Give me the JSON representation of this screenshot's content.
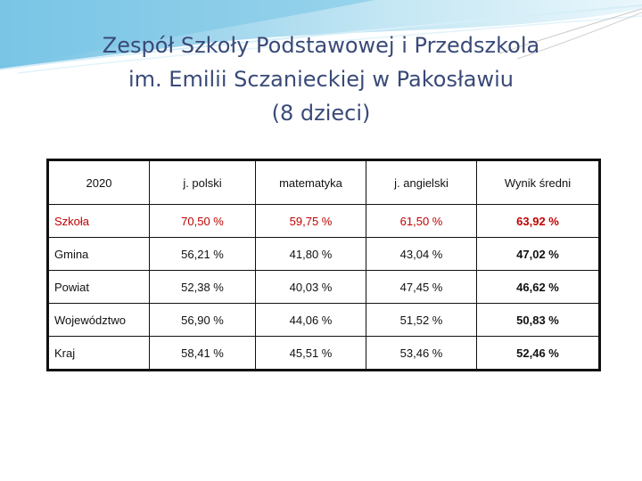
{
  "title": {
    "line1": "Zespół Szkoły Podstawowej i Przedszkola",
    "line2": "im. Emilii Sczanieckiej w Pakosławiu",
    "line3": "(8 dzieci)"
  },
  "table": {
    "headers": [
      "2020",
      "j. polski",
      "matematyka",
      "j. angielski",
      "Wynik średni"
    ],
    "rows": [
      {
        "name": "Szkoła",
        "values": [
          "70,50 %",
          "59,75 %",
          "61,50 %",
          "63,92 %"
        ]
      },
      {
        "name": "Gmina",
        "values": [
          "56,21 %",
          "41,80 %",
          "43,04 %",
          "47,02 %"
        ]
      },
      {
        "name": "Powiat",
        "values": [
          "52,38 %",
          "40,03 %",
          "47,45 %",
          "46,62 %"
        ]
      },
      {
        "name": "Województwo",
        "values": [
          "56,90 %",
          "44,06 %",
          "51,52 %",
          "50,83 %"
        ]
      },
      {
        "name": "Kraj",
        "values": [
          "58,41 %",
          "45,51 %",
          "53,46 %",
          "52,46 %"
        ]
      }
    ]
  },
  "colors": {
    "title": "#3a4a78",
    "highlight": "#c00000",
    "swoosh": "#9fd3ea"
  }
}
